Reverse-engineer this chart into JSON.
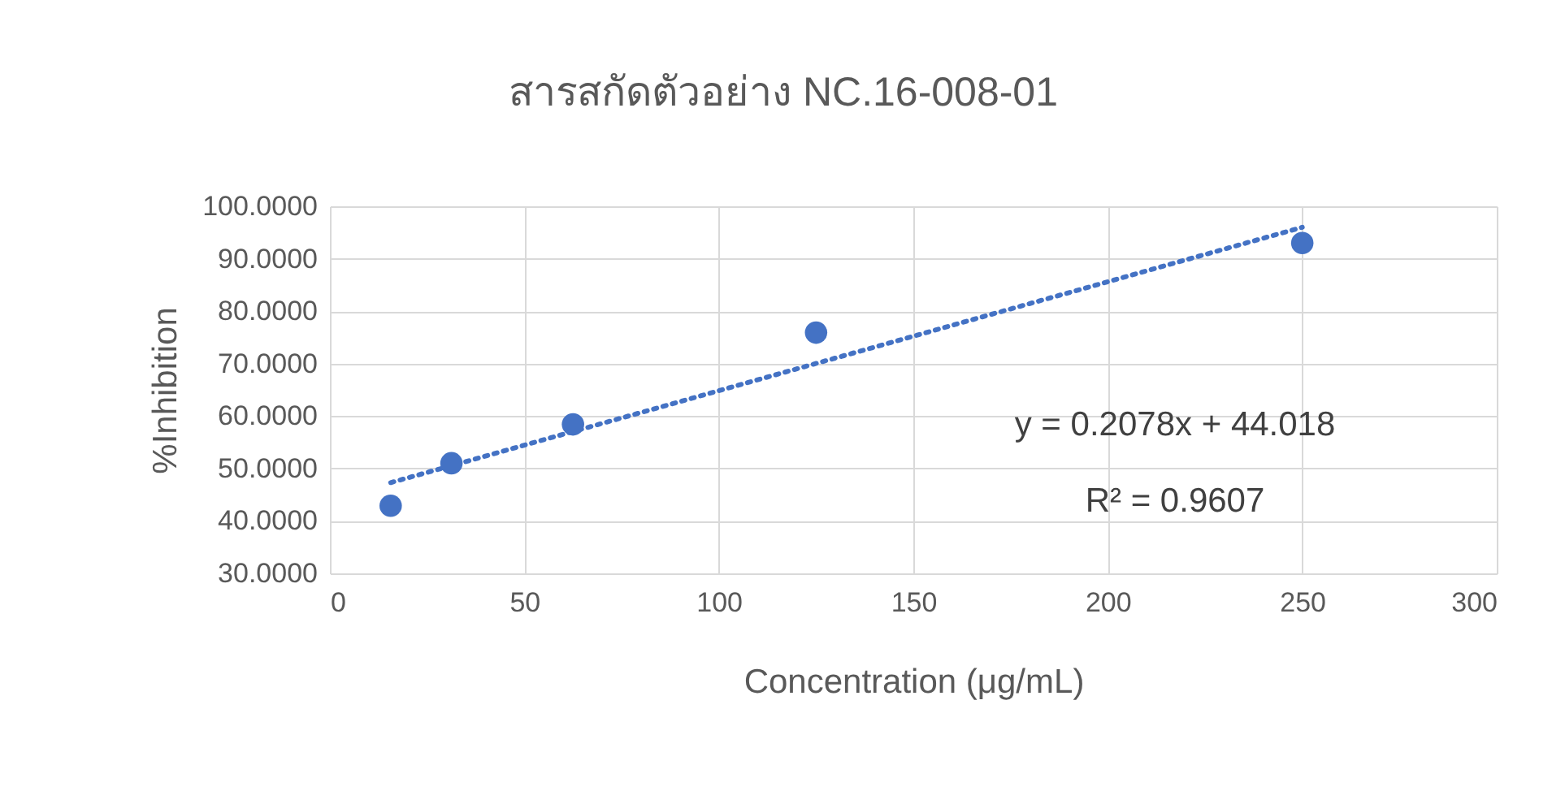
{
  "chart_data": {
    "type": "scatter",
    "title": "สารสกัดตัวอย่าง NC.16-008-01",
    "xlabel": "Concentration (μg/mL)",
    "ylabel": "%Inhibition",
    "series": [
      {
        "type": "scatter",
        "color": "#4472c4",
        "marker": "circle",
        "x": [
          15.625,
          31.25,
          62.5,
          125,
          250
        ],
        "values": [
          42.9,
          51.0,
          58.4,
          75.9,
          93.0
        ]
      },
      {
        "type": "line",
        "color": "#4472c4",
        "line_style": "dotted",
        "x": [
          15.625,
          250
        ],
        "values": [
          47.3,
          96.0
        ]
      }
    ],
    "annotations": [
      "y = 0.2078x + 44.018",
      "R² = 0.9607"
    ],
    "xlim": [
      0,
      300
    ],
    "xticks": [
      0,
      50,
      100,
      150,
      200,
      250,
      300
    ],
    "ylim": [
      30,
      100
    ],
    "yticks": [
      {
        "value": 30,
        "label": "30.0000"
      },
      {
        "value": 40,
        "label": "40.0000"
      },
      {
        "value": 50,
        "label": "50.0000"
      },
      {
        "value": 60,
        "label": "60.0000"
      },
      {
        "value": 70,
        "label": "70.0000"
      },
      {
        "value": 80,
        "label": "80.0000"
      },
      {
        "value": 90,
        "label": "90.0000"
      },
      {
        "value": 100,
        "label": "100.0000"
      }
    ],
    "grid": true
  }
}
